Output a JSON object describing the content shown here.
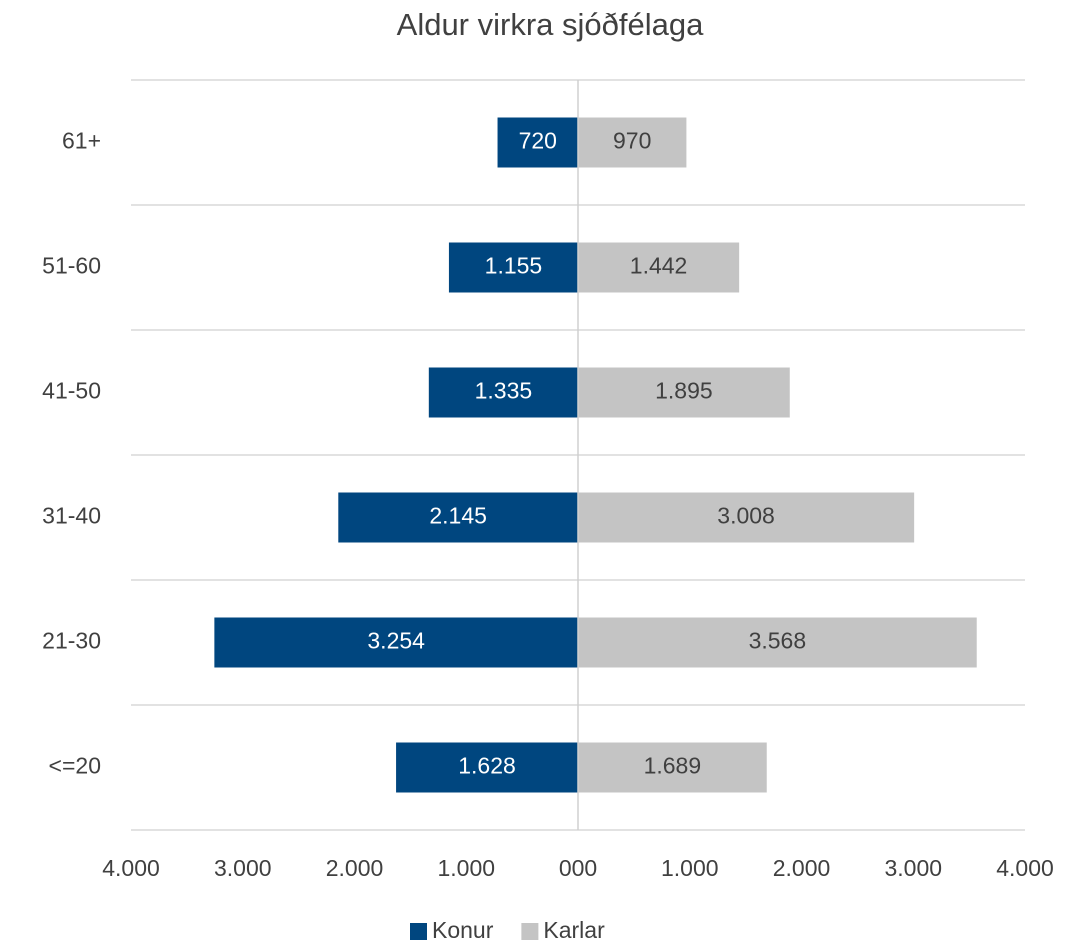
{
  "chart_data": {
    "type": "pyramid",
    "title": "Aldur virkra sjóðfélaga",
    "categories": [
      "61+",
      "51-60",
      "41-50",
      "31-40",
      "21-30",
      "<=20"
    ],
    "series": [
      {
        "name": "Konur",
        "color": "#00467f",
        "side": "left",
        "values": [
          720,
          1155,
          1335,
          2145,
          3254,
          1628
        ],
        "value_labels": [
          "720",
          "1.155",
          "1.335",
          "2.145",
          "3.254",
          "1.628"
        ]
      },
      {
        "name": "Karlar",
        "color": "#c4c4c4",
        "side": "right",
        "values": [
          970,
          1442,
          1895,
          3008,
          3568,
          1689
        ],
        "value_labels": [
          "970",
          "1.442",
          "1.895",
          "3.008",
          "3.568",
          "1.689"
        ]
      }
    ],
    "xlim": [
      -4000,
      4000
    ],
    "xticks": [
      {
        "value": -4000,
        "label": "4.000"
      },
      {
        "value": -3000,
        "label": "3.000"
      },
      {
        "value": -2000,
        "label": "2.000"
      },
      {
        "value": -1000,
        "label": "1.000"
      },
      {
        "value": 0,
        "label": "000"
      },
      {
        "value": 1000,
        "label": "1.000"
      },
      {
        "value": 2000,
        "label": "2.000"
      },
      {
        "value": 3000,
        "label": "3.000"
      },
      {
        "value": 4000,
        "label": "4.000"
      }
    ],
    "legend": "bottom"
  }
}
